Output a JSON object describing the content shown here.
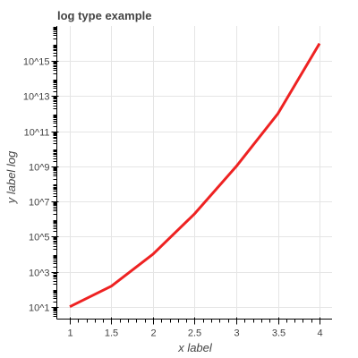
{
  "chart_data": {
    "type": "line",
    "title": "log type example",
    "xlabel": "x label",
    "ylabel": "y label log",
    "y_scale": "log",
    "grid": true,
    "line_color": "#ee2222",
    "xlim": [
      0.85,
      4.15
    ],
    "ylim": [
      3,
      1e+17
    ],
    "x_ticks": [
      1,
      1.5,
      2,
      2.5,
      3,
      3.5,
      4
    ],
    "x_tick_labels": [
      "1",
      "1.5",
      "2",
      "2.5",
      "3",
      "3.5",
      "4"
    ],
    "y_ticks": [
      10,
      1000,
      100000,
      10000000,
      1000000000,
      100000000000,
      10000000000000,
      1000000000000000
    ],
    "y_tick_labels": [
      "10^1",
      "10^3",
      "10^5",
      "10^7",
      "10^9",
      "10^11",
      "10^13",
      "10^15"
    ],
    "series": [
      {
        "x": [
          1,
          1.5,
          2,
          2.5,
          3,
          3.5,
          4
        ],
        "y": [
          10,
          150,
          10000,
          2000000,
          1000000000,
          1000000000000,
          10000000000000000
        ]
      }
    ]
  }
}
